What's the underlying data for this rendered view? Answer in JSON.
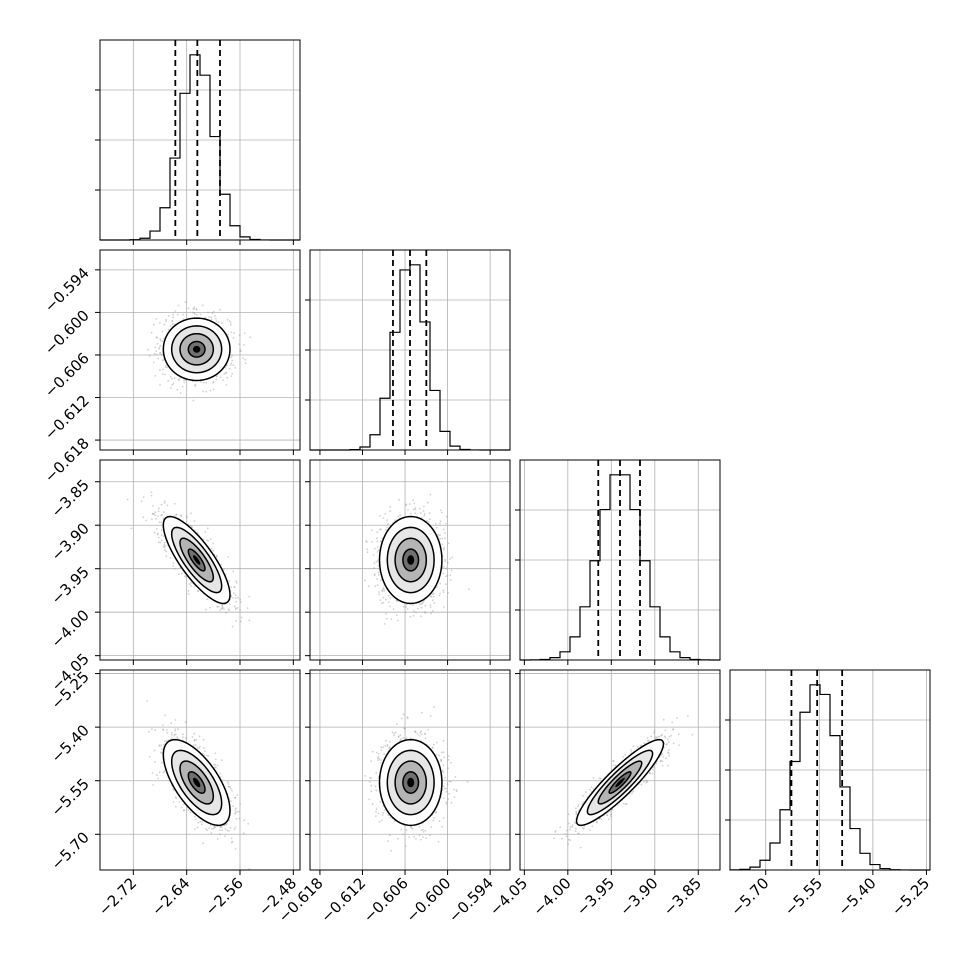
{
  "chart_data": {
    "type": "corner",
    "title": "",
    "grid": true,
    "parameters": [
      {
        "ticks": [
          -2.72,
          -2.64,
          -2.56,
          -2.48
        ],
        "tick_labels": [
          "−2.72",
          "−2.64",
          "−2.56",
          "−2.48"
        ],
        "range": [
          -2.77,
          -2.47
        ],
        "mean": -2.625,
        "sigma": 0.025,
        "quantiles": [
          -2.657,
          -2.624,
          -2.59
        ]
      },
      {
        "ticks": [
          -0.618,
          -0.612,
          -0.606,
          -0.6,
          -0.594
        ],
        "tick_labels": [
          "−0.618",
          "−0.612",
          "−0.606",
          "−0.600",
          "−0.594"
        ],
        "range": [
          -0.6194,
          -0.5912
        ],
        "mean": -0.6052,
        "sigma": 0.0022,
        "quantiles": [
          -0.6077,
          -0.6053,
          -0.603
        ]
      },
      {
        "ticks": [
          -4.05,
          -4.0,
          -3.95,
          -3.9,
          -3.85
        ],
        "tick_labels": [
          "−4.05",
          "−4.00",
          "−3.95",
          "−3.90",
          "−3.85"
        ],
        "range": [
          -4.055,
          -3.825
        ],
        "mean": -3.94,
        "sigma": 0.025,
        "quantiles": [
          -3.965,
          -3.94,
          -3.917
        ]
      },
      {
        "ticks": [
          -5.7,
          -5.55,
          -5.4,
          -5.25
        ],
        "tick_labels": [
          "−5.70",
          "−5.55",
          "−5.40",
          "−5.25"
        ],
        "range": [
          -5.8,
          -5.24
        ],
        "mean": -5.555,
        "sigma": 0.06,
        "quantiles": [
          -5.628,
          -5.556,
          -5.486
        ]
      }
    ],
    "correlations": {
      "0-1": 0.0,
      "0-2": -0.8,
      "1-2": 0.0,
      "0-3": -0.65,
      "1-3": 0.0,
      "2-3": 0.9
    },
    "histogram_bins": 20,
    "contour_levels_sigma": [
      0.5,
      1.0,
      1.5,
      2.0
    ],
    "quantile_line_style": "dashed",
    "colors": {
      "contour": "#000000",
      "scatter": "#999999",
      "grid": "#b0b0b0",
      "axes": "#000000"
    }
  }
}
